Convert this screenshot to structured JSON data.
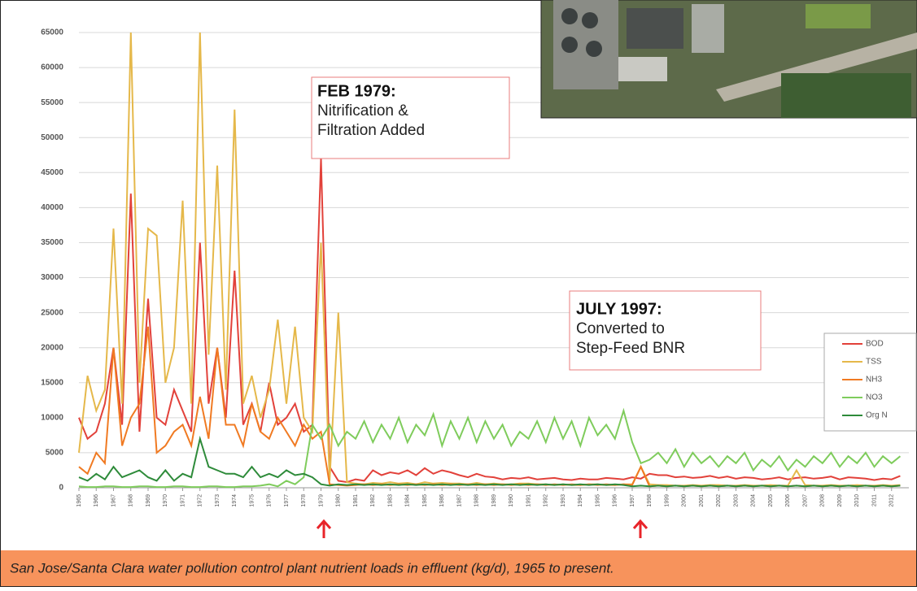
{
  "chart_data": {
    "type": "line",
    "caption": "San Jose/Santa Clara water pollution control plant nutrient loads in effluent (kg/d), 1965 to present.",
    "annotations": [
      {
        "title": "FEB 1979:",
        "lines": [
          "Nitrification &",
          "Filtration Added"
        ]
      },
      {
        "title": "JULY 1997:",
        "lines": [
          "Converted to",
          "Step-Feed BNR"
        ]
      }
    ],
    "ylim": [
      0,
      65000
    ],
    "yticks": [
      0,
      5000,
      10000,
      15000,
      20000,
      25000,
      30000,
      35000,
      40000,
      45000,
      50000,
      55000,
      60000,
      65000
    ],
    "xlim": [
      1965,
      2013
    ],
    "xticks": [
      1965,
      1966,
      1967,
      1968,
      1969,
      1970,
      1971,
      1972,
      1973,
      1974,
      1975,
      1976,
      1977,
      1978,
      1979,
      1980,
      1981,
      1982,
      1983,
      1984,
      1985,
      1986,
      1987,
      1988,
      1989,
      1990,
      1991,
      1992,
      1993,
      1994,
      1995,
      1996,
      1997,
      1998,
      1999,
      2000,
      2001,
      2002,
      2003,
      2004,
      2005,
      2006,
      2007,
      2008,
      2009,
      2010,
      2011,
      2012
    ],
    "grid": true,
    "x": [
      1965,
      1965.5,
      1966,
      1966.5,
      1967,
      1967.5,
      1968,
      1968.5,
      1969,
      1969.5,
      1970,
      1970.5,
      1971,
      1971.5,
      1972,
      1972.5,
      1973,
      1973.5,
      1974,
      1974.5,
      1975,
      1975.5,
      1976,
      1976.5,
      1977,
      1977.5,
      1978,
      1978.5,
      1979,
      1979.5,
      1980,
      1980.5,
      1981,
      1981.5,
      1982,
      1982.5,
      1983,
      1983.5,
      1984,
      1984.5,
      1985,
      1985.5,
      1986,
      1986.5,
      1987,
      1987.5,
      1988,
      1988.5,
      1989,
      1989.5,
      1990,
      1990.5,
      1991,
      1991.5,
      1992,
      1992.5,
      1993,
      1993.5,
      1994,
      1994.5,
      1995,
      1995.5,
      1996,
      1996.5,
      1997,
      1997.5,
      1998,
      1998.5,
      1999,
      1999.5,
      2000,
      2000.5,
      2001,
      2001.5,
      2002,
      2002.5,
      2003,
      2003.5,
      2004,
      2004.5,
      2005,
      2005.5,
      2006,
      2006.5,
      2007,
      2007.5,
      2008,
      2008.5,
      2009,
      2009.5,
      2010,
      2010.5,
      2011,
      2011.5,
      2012,
      2012.5
    ],
    "series": [
      {
        "name": "BOD",
        "color": "#e2413a",
        "values": [
          10000,
          7000,
          8000,
          12000,
          20000,
          9000,
          42000,
          8000,
          27000,
          10000,
          9000,
          14000,
          11000,
          8000,
          35000,
          12000,
          20000,
          10000,
          31000,
          9000,
          12000,
          8000,
          15000,
          9000,
          10000,
          12000,
          8000,
          9000,
          47000,
          3000,
          1000,
          800,
          1200,
          1000,
          2500,
          1800,
          2200,
          2000,
          2500,
          1800,
          2800,
          2000,
          2500,
          2200,
          1800,
          1500,
          2000,
          1600,
          1500,
          1200,
          1400,
          1300,
          1500,
          1200,
          1300,
          1400,
          1200,
          1100,
          1300,
          1200,
          1200,
          1400,
          1300,
          1200,
          1500,
          1300,
          2000,
          1800,
          1800,
          1500,
          1600,
          1400,
          1500,
          1700,
          1400,
          1600,
          1300,
          1500,
          1400,
          1200,
          1300,
          1500,
          1200,
          1400,
          1500,
          1300,
          1400,
          1600,
          1200,
          1500,
          1400,
          1300,
          1100,
          1300,
          1200,
          1700
        ]
      },
      {
        "name": "TSS",
        "color": "#e5b84a",
        "values": [
          5000,
          16000,
          11000,
          14000,
          37000,
          12000,
          65000,
          15000,
          37000,
          36000,
          15000,
          20000,
          41000,
          12000,
          65000,
          19000,
          46000,
          14000,
          54000,
          12000,
          16000,
          10000,
          14000,
          24000,
          12000,
          23000,
          10000,
          8000,
          35000,
          1000,
          25000,
          800,
          600,
          500,
          700,
          600,
          800,
          600,
          700,
          500,
          800,
          600,
          700,
          600,
          600,
          500,
          700,
          500,
          600,
          500,
          500,
          600,
          600,
          500,
          500,
          400,
          500,
          400,
          400,
          500,
          500,
          400,
          400,
          500,
          500,
          3000,
          500,
          400,
          400,
          300,
          300,
          400,
          300,
          400,
          400,
          300,
          300,
          400,
          300,
          300,
          400,
          300,
          300,
          2500,
          400,
          300,
          300,
          400,
          300,
          300,
          400,
          300,
          300,
          400,
          300,
          400
        ]
      },
      {
        "name": "NH3",
        "color": "#f07a22",
        "values": [
          3000,
          2000,
          5000,
          3500,
          20000,
          6000,
          10000,
          12000,
          23000,
          5000,
          6000,
          8000,
          9000,
          6000,
          13000,
          7000,
          20000,
          9000,
          9000,
          6000,
          12000,
          8000,
          7000,
          10000,
          8000,
          6000,
          9000,
          7000,
          8000,
          500,
          400,
          300,
          400,
          500,
          400,
          500,
          400,
          500,
          400,
          500,
          400,
          500,
          400,
          500,
          400,
          500,
          400,
          500,
          400,
          500,
          400,
          500,
          400,
          500,
          400,
          500,
          400,
          500,
          400,
          500,
          400,
          500,
          400,
          500,
          400,
          3000,
          200,
          300,
          200,
          300,
          200,
          300,
          200,
          300,
          200,
          300,
          200,
          300,
          200,
          300,
          200,
          300,
          200,
          300,
          200,
          300,
          200,
          300,
          200,
          300,
          200,
          300,
          200,
          300,
          200,
          300
        ]
      },
      {
        "name": "NO3",
        "color": "#7fcc5c",
        "values": [
          200,
          100,
          100,
          200,
          200,
          100,
          100,
          200,
          200,
          100,
          100,
          200,
          200,
          100,
          100,
          200,
          200,
          100,
          100,
          200,
          200,
          300,
          500,
          200,
          1000,
          500,
          1500,
          9000,
          7000,
          9000,
          6000,
          8000,
          7000,
          9500,
          6500,
          9000,
          7000,
          10000,
          6500,
          9000,
          7500,
          10500,
          6000,
          9500,
          7000,
          10000,
          6500,
          9500,
          7000,
          9000,
          6000,
          8000,
          7000,
          9500,
          6500,
          10000,
          7000,
          9500,
          6000,
          10000,
          7500,
          9000,
          7000,
          11000,
          6500,
          3500,
          4000,
          5000,
          3500,
          5500,
          3000,
          5000,
          3500,
          4500,
          3000,
          4500,
          3500,
          5000,
          2500,
          4000,
          3000,
          4500,
          2500,
          4000,
          3000,
          4500,
          3500,
          5000,
          3000,
          4500,
          3500,
          5000,
          3000,
          4500,
          3500,
          4500
        ]
      },
      {
        "name": "Org N",
        "color": "#2e8b3a",
        "values": [
          1500,
          1000,
          2000,
          1200,
          3000,
          1500,
          2000,
          2500,
          1500,
          1000,
          2500,
          1000,
          2000,
          1500,
          7000,
          3000,
          2500,
          2000,
          2000,
          1500,
          3000,
          1500,
          2000,
          1500,
          2500,
          1800,
          2000,
          1500,
          500,
          300,
          500,
          400,
          500,
          400,
          500,
          400,
          500,
          400,
          500,
          400,
          500,
          400,
          500,
          400,
          500,
          400,
          500,
          400,
          500,
          400,
          500,
          400,
          500,
          400,
          500,
          400,
          500,
          400,
          500,
          400,
          500,
          400,
          500,
          400,
          200,
          300,
          200,
          300,
          200,
          300,
          200,
          300,
          200,
          300,
          200,
          300,
          200,
          300,
          200,
          300,
          200,
          300,
          200,
          300,
          200,
          300,
          200,
          300,
          200,
          300,
          200,
          300,
          200,
          300,
          200,
          300
        ]
      }
    ]
  }
}
